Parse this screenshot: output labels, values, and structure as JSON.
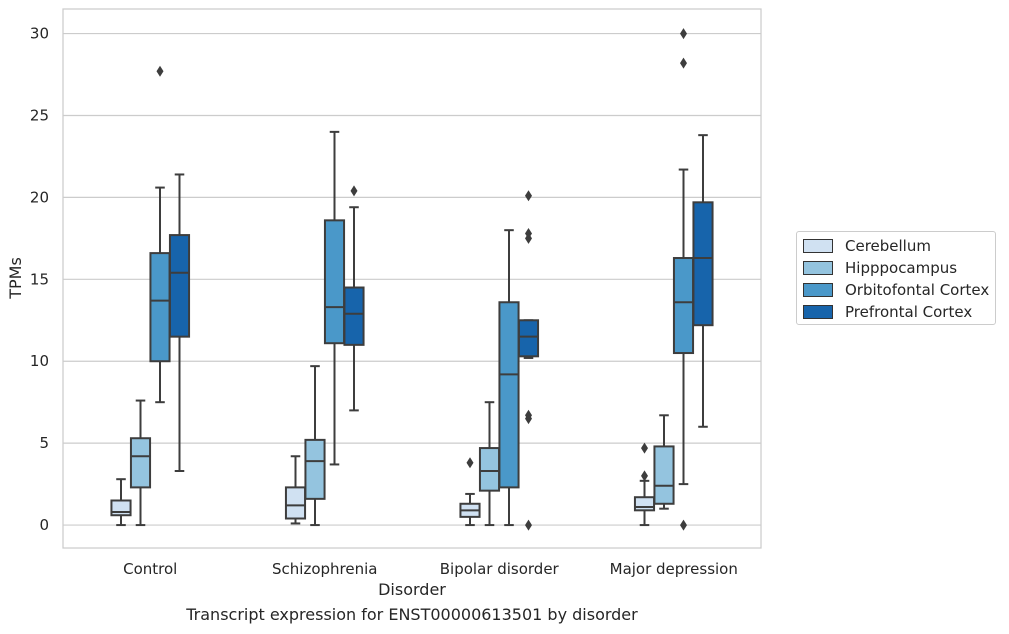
{
  "chart_data": {
    "type": "box",
    "title": "",
    "caption": "Transcript expression for ENST00000613501 by disorder",
    "xlabel": "Disorder",
    "ylabel": "TPMs",
    "ylim": [
      -1.4,
      31.5
    ],
    "yticks": [
      0,
      5,
      10,
      15,
      20,
      25,
      30
    ],
    "categories": [
      "Control",
      "Schizophrenia",
      "Bipolar disorder",
      "Major depression"
    ],
    "legend_position": "right-center",
    "grid": true,
    "series": [
      {
        "name": "Cerebellum",
        "color": "#d0e1f2",
        "boxes": [
          {
            "min": 0.0,
            "q1": 0.6,
            "median": 0.8,
            "q3": 1.5,
            "max": 2.8,
            "outliers": []
          },
          {
            "min": 0.1,
            "q1": 0.4,
            "median": 1.2,
            "q3": 2.3,
            "max": 4.2,
            "outliers": []
          },
          {
            "min": 0.0,
            "q1": 0.5,
            "median": 0.9,
            "q3": 1.3,
            "max": 1.9,
            "outliers": [
              3.8
            ]
          },
          {
            "min": 0.0,
            "q1": 0.9,
            "median": 1.1,
            "q3": 1.7,
            "max": 2.7,
            "outliers": [
              3.0,
              4.7
            ]
          }
        ]
      },
      {
        "name": "Hipppocampus",
        "color": "#94c4df",
        "boxes": [
          {
            "min": 0.0,
            "q1": 2.3,
            "median": 4.2,
            "q3": 5.3,
            "max": 7.6,
            "outliers": []
          },
          {
            "min": 0.0,
            "q1": 1.6,
            "median": 3.9,
            "q3": 5.2,
            "max": 9.7,
            "outliers": []
          },
          {
            "min": 0.0,
            "q1": 2.1,
            "median": 3.3,
            "q3": 4.7,
            "max": 7.5,
            "outliers": []
          },
          {
            "min": 1.0,
            "q1": 1.3,
            "median": 2.4,
            "q3": 4.8,
            "max": 6.7,
            "outliers": []
          }
        ]
      },
      {
        "name": "Orbitofontal Cortex",
        "color": "#4a98c9",
        "boxes": [
          {
            "min": 7.5,
            "q1": 10.0,
            "median": 13.7,
            "q3": 16.6,
            "max": 20.6,
            "outliers": [
              27.7
            ]
          },
          {
            "min": 3.7,
            "q1": 11.1,
            "median": 13.3,
            "q3": 18.6,
            "max": 24.0,
            "outliers": []
          },
          {
            "min": 0.0,
            "q1": 2.3,
            "median": 9.2,
            "q3": 13.6,
            "max": 18.0,
            "outliers": []
          },
          {
            "min": 2.5,
            "q1": 10.5,
            "median": 13.6,
            "q3": 16.3,
            "max": 21.7,
            "outliers": [
              0.0,
              28.2,
              30.0
            ]
          }
        ]
      },
      {
        "name": "Prefrontal Cortex",
        "color": "#1764ab",
        "boxes": [
          {
            "min": 3.3,
            "q1": 11.5,
            "median": 15.4,
            "q3": 17.7,
            "max": 21.4,
            "outliers": []
          },
          {
            "min": 7.0,
            "q1": 11.0,
            "median": 12.9,
            "q3": 14.5,
            "max": 19.4,
            "outliers": [
              20.4
            ]
          },
          {
            "min": 10.2,
            "q1": 10.3,
            "median": 11.5,
            "q3": 12.5,
            "max": 12.5,
            "outliers": [
              0.0,
              6.5,
              6.7,
              17.5,
              17.8,
              20.1
            ]
          },
          {
            "min": 6.0,
            "q1": 12.2,
            "median": 16.3,
            "q3": 19.7,
            "max": 23.8,
            "outliers": []
          }
        ]
      }
    ]
  }
}
